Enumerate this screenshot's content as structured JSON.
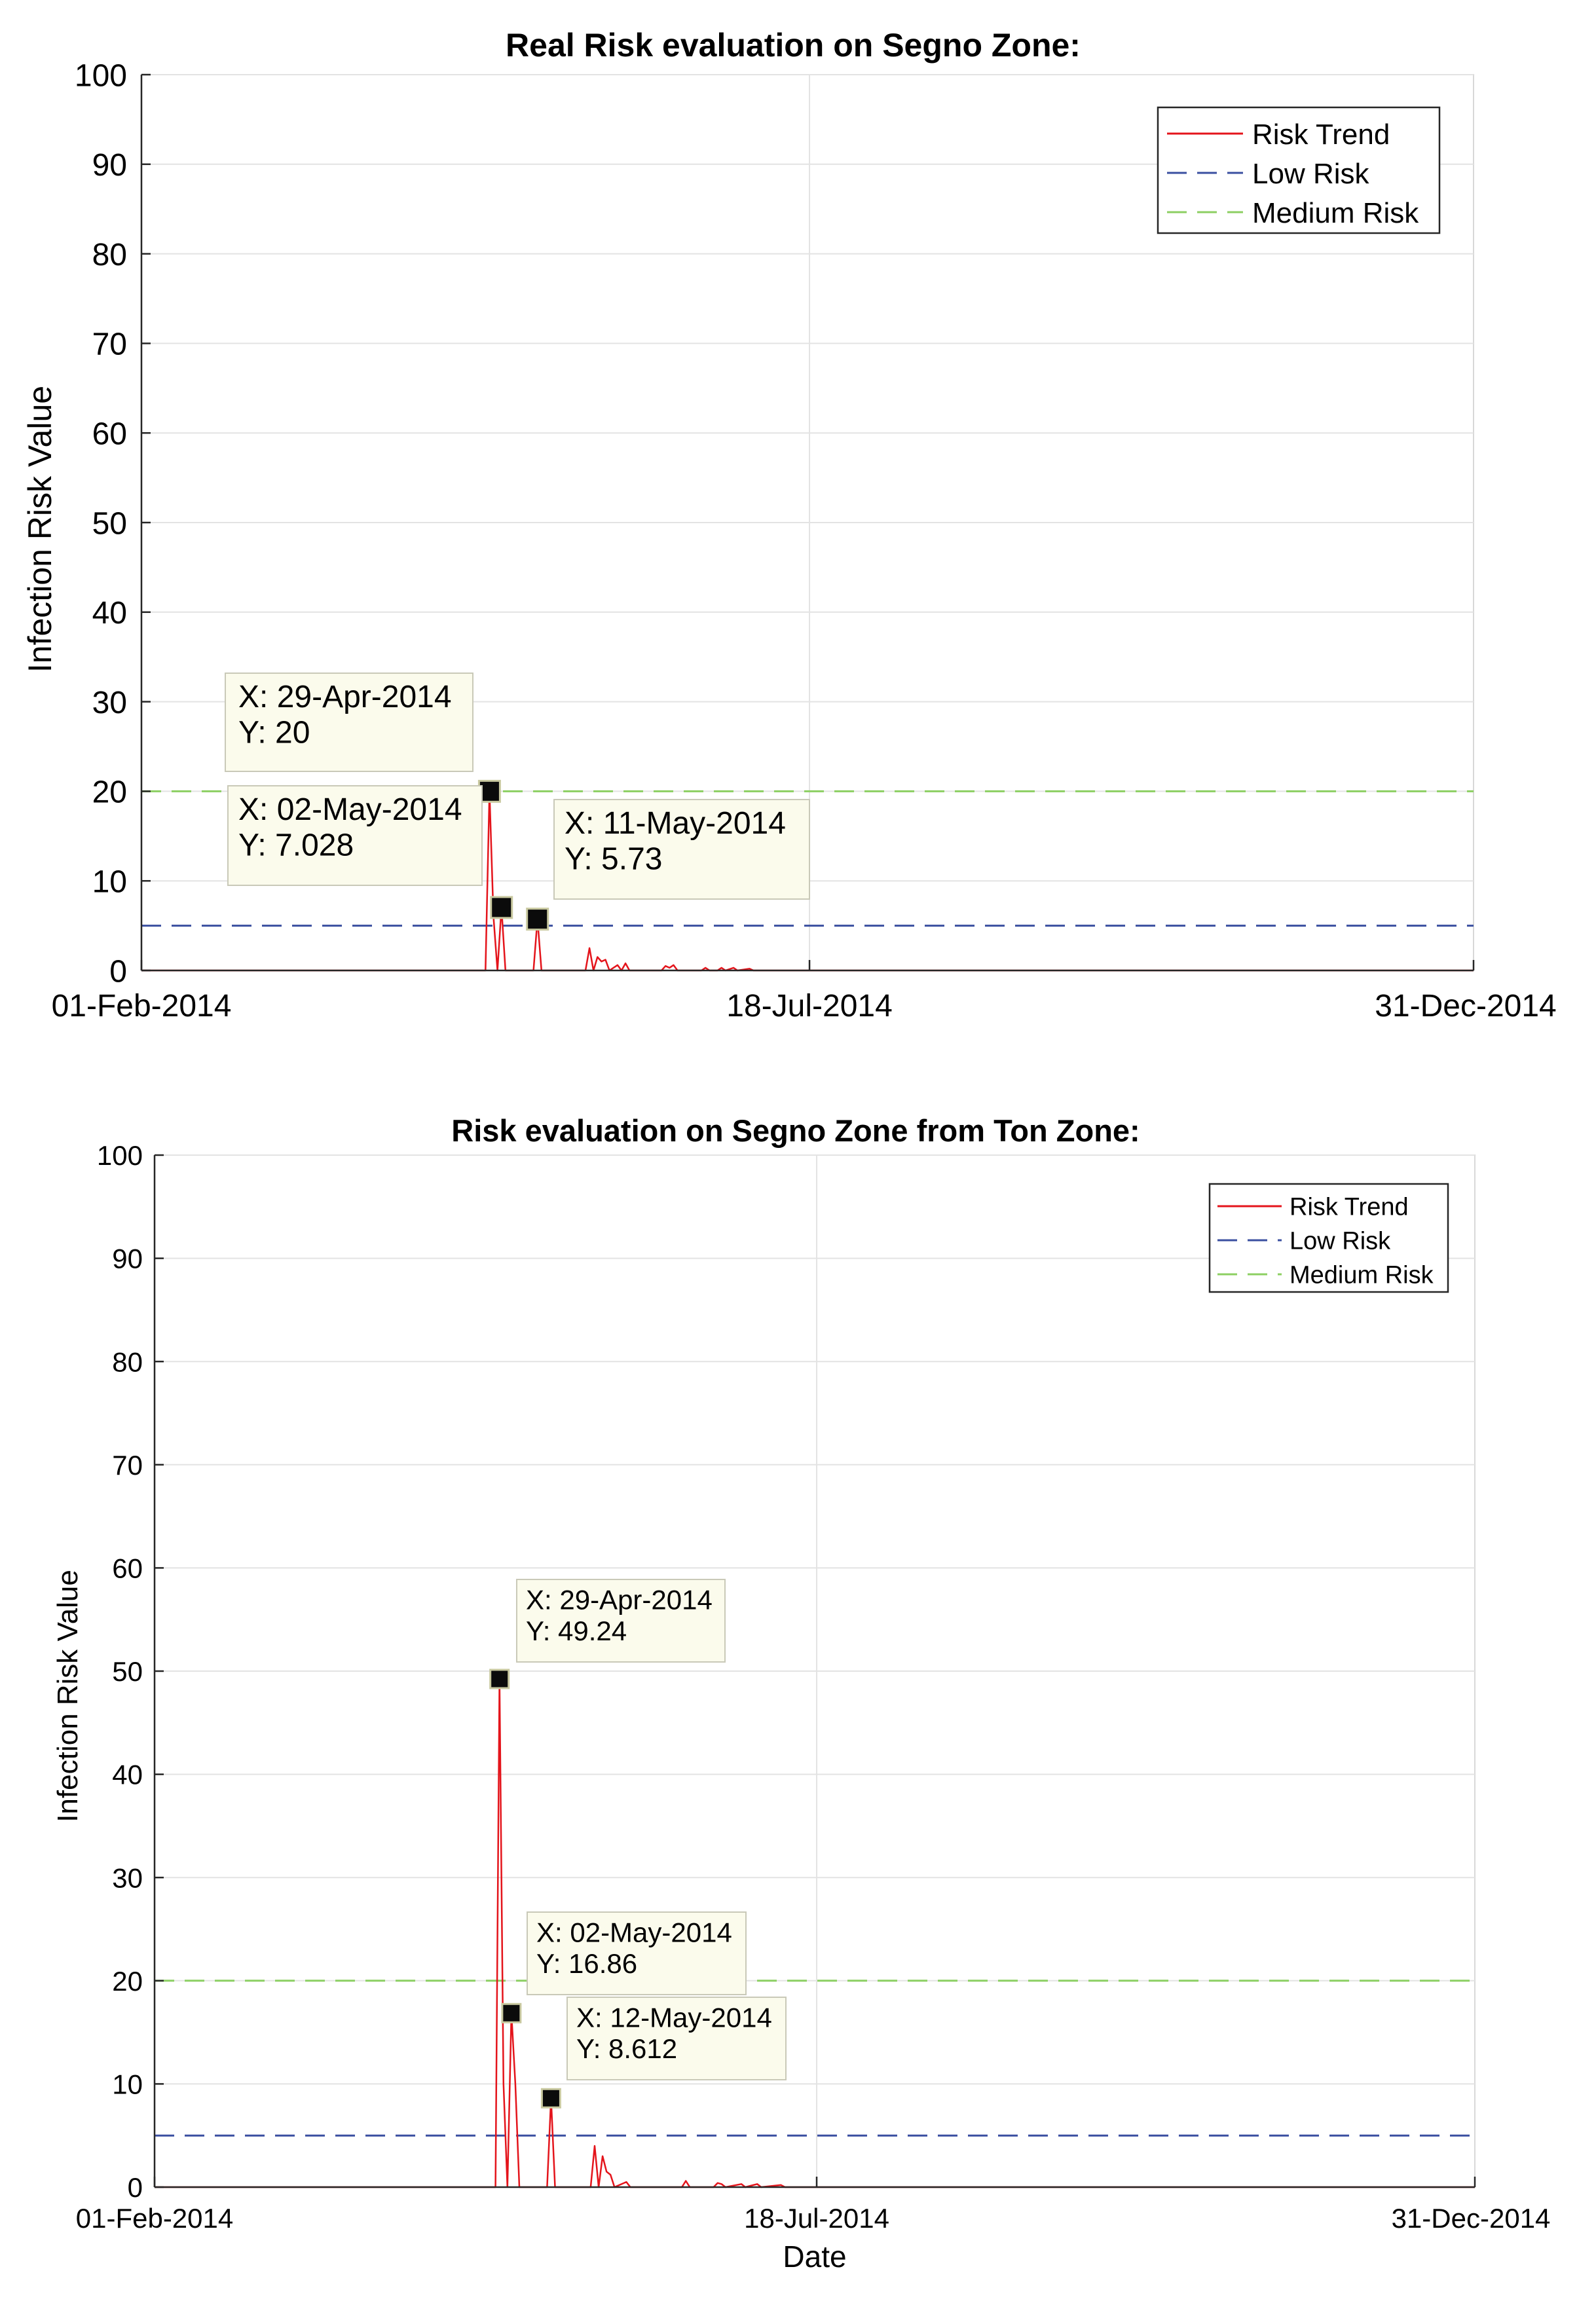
{
  "chart_data": [
    {
      "type": "line",
      "title": "Real Risk evaluation on Segno Zone:",
      "xlabel": "",
      "ylabel": "Infection Risk Value",
      "xlim": [
        "01-Feb-2014",
        "31-Dec-2014"
      ],
      "ylim": [
        0,
        100
      ],
      "x_day_range": [
        0,
        333
      ],
      "x_ticks": [
        {
          "day": 0,
          "label": "01-Feb-2014"
        },
        {
          "day": 167,
          "label": "18-Jul-2014"
        },
        {
          "day": 333,
          "label": "31-Dec-2014"
        }
      ],
      "y_ticks": [
        0,
        10,
        20,
        30,
        40,
        50,
        60,
        70,
        80,
        90,
        100
      ],
      "grid": true,
      "legend": {
        "position": "top-right",
        "entries": [
          {
            "label": "Risk Trend",
            "style": "solid",
            "color": "#e4141b"
          },
          {
            "label": "Low Risk",
            "style": "dashed",
            "color": "#3a4fa0"
          },
          {
            "label": "Medium Risk",
            "style": "dashed",
            "color": "#8ccf62"
          }
        ]
      },
      "thresholds": [
        {
          "name": "Low Risk",
          "value": 5,
          "color": "#3a4fa0"
        },
        {
          "name": "Medium Risk",
          "value": 20,
          "color": "#8ccf62"
        }
      ],
      "series": [
        {
          "name": "Risk Trend",
          "color": "#e4141b",
          "points": [
            [
              0,
              0
            ],
            [
              86,
              0
            ],
            [
              87,
              20
            ],
            [
              88,
              6
            ],
            [
              89,
              0
            ],
            [
              90,
              7.028
            ],
            [
              91,
              0
            ],
            [
              98,
              0
            ],
            [
              99,
              5.73
            ],
            [
              100,
              0
            ],
            [
              111,
              0
            ],
            [
              112,
              2.5
            ],
            [
              113,
              0
            ],
            [
              114,
              1.5
            ],
            [
              115,
              1.0
            ],
            [
              116,
              1.2
            ],
            [
              117,
              0
            ],
            [
              119,
              0.6
            ],
            [
              120,
              0
            ],
            [
              121,
              0.8
            ],
            [
              122,
              0
            ],
            [
              130,
              0
            ],
            [
              131,
              0.5
            ],
            [
              132,
              0.3
            ],
            [
              133,
              0.6
            ],
            [
              134,
              0
            ],
            [
              140,
              0
            ],
            [
              141,
              0.3
            ],
            [
              142,
              0
            ],
            [
              144,
              0
            ],
            [
              145,
              0.3
            ],
            [
              146,
              0
            ],
            [
              148,
              0.3
            ],
            [
              149,
              0
            ],
            [
              152,
              0.2
            ],
            [
              153,
              0
            ],
            [
              333,
              0
            ]
          ]
        }
      ],
      "annotations": [
        {
          "day": 87,
          "value": 20,
          "x_text": "X: 29-Apr-2014",
          "y_text": "Y: 20"
        },
        {
          "day": 90,
          "value": 7.028,
          "x_text": "X: 02-May-2014",
          "y_text": "Y: 7.028"
        },
        {
          "day": 99,
          "value": 5.73,
          "x_text": "X: 11-May-2014",
          "y_text": "Y: 5.73"
        }
      ]
    },
    {
      "type": "line",
      "title": "Risk evaluation on Segno Zone from Ton Zone:",
      "xlabel": "Date",
      "ylabel": "Infection Risk Value",
      "xlim": [
        "01-Feb-2014",
        "31-Dec-2014"
      ],
      "ylim": [
        0,
        100
      ],
      "x_day_range": [
        0,
        333
      ],
      "x_ticks": [
        {
          "day": 0,
          "label": "01-Feb-2014"
        },
        {
          "day": 167,
          "label": "18-Jul-2014"
        },
        {
          "day": 333,
          "label": "31-Dec-2014"
        }
      ],
      "y_ticks": [
        0,
        10,
        20,
        30,
        40,
        50,
        60,
        70,
        80,
        90,
        100
      ],
      "grid": true,
      "legend": {
        "position": "top-right",
        "entries": [
          {
            "label": "Risk Trend",
            "style": "solid",
            "color": "#e4141b"
          },
          {
            "label": "Low Risk",
            "style": "dashed",
            "color": "#3a4fa0"
          },
          {
            "label": "Medium Risk",
            "style": "dashed",
            "color": "#8ccf62"
          }
        ]
      },
      "thresholds": [
        {
          "name": "Low Risk",
          "value": 5,
          "color": "#3a4fa0"
        },
        {
          "name": "Medium Risk",
          "value": 20,
          "color": "#8ccf62"
        }
      ],
      "series": [
        {
          "name": "Risk Trend",
          "color": "#e4141b",
          "points": [
            [
              0,
              0
            ],
            [
              86,
              0
            ],
            [
              87,
              49.24
            ],
            [
              88,
              10
            ],
            [
              89,
              0
            ],
            [
              90,
              16.86
            ],
            [
              91,
              10
            ],
            [
              92,
              0
            ],
            [
              99,
              0
            ],
            [
              100,
              8.612
            ],
            [
              101,
              0
            ],
            [
              110,
              0
            ],
            [
              111,
              4.0
            ],
            [
              112,
              0
            ],
            [
              113,
              3.0
            ],
            [
              114,
              1.5
            ],
            [
              115,
              1.2
            ],
            [
              116,
              0
            ],
            [
              119,
              0.5
            ],
            [
              120,
              0
            ],
            [
              133,
              0
            ],
            [
              134,
              0.6
            ],
            [
              135,
              0
            ],
            [
              141,
              0
            ],
            [
              142,
              0.4
            ],
            [
              143,
              0.3
            ],
            [
              144,
              0
            ],
            [
              148,
              0.3
            ],
            [
              149,
              0
            ],
            [
              152,
              0.3
            ],
            [
              153,
              0
            ],
            [
              158,
              0.2
            ],
            [
              159,
              0
            ],
            [
              333,
              0
            ]
          ]
        }
      ],
      "annotations": [
        {
          "day": 87,
          "value": 49.24,
          "x_text": "X: 29-Apr-2014",
          "y_text": "Y: 49.24"
        },
        {
          "day": 90,
          "value": 16.86,
          "x_text": "X: 02-May-2014",
          "y_text": "Y: 16.86"
        },
        {
          "day": 100,
          "value": 8.612,
          "x_text": "X: 12-May-2014",
          "y_text": "Y: 8.612"
        }
      ]
    }
  ]
}
